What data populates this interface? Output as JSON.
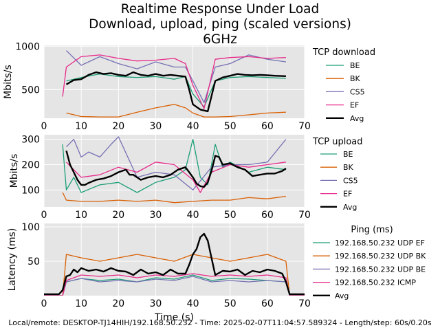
{
  "title_lines": [
    "Realtime Response Under Load",
    "Download, upload, ping (scaled versions)",
    "6GHz"
  ],
  "footer": "Local/remote: DESKTOP-TJ14HIH/192.168.50.232 - Time: 2025-02-07T11:04:57.589324 - Length/step: 60s/0.20s",
  "colors": {
    "BE": "#1b9e77",
    "BK": "#d95f02",
    "CS5": "#7570b3",
    "EF": "#e7298a",
    "Avg": "#000000",
    "panel_bg": "#e5e5e5",
    "grid": "#ffffff"
  },
  "chart_data": [
    {
      "type": "line",
      "title": "",
      "ylabel": "Mbits/s",
      "xlabel": "",
      "xlim": [
        0,
        70
      ],
      "ylim": [
        170,
        1010
      ],
      "xticks": [
        0,
        10,
        20,
        30,
        40,
        50,
        60,
        70
      ],
      "yticks": [
        500,
        1000
      ],
      "grid": true,
      "legend_title": "TCP download",
      "legend_placement": "right",
      "series": [
        {
          "name": "BE",
          "color_key": "BE",
          "x": [
            6,
            10,
            15,
            20,
            25,
            30,
            35,
            38,
            40,
            43,
            46,
            50,
            55,
            60,
            65
          ],
          "y": [
            600,
            640,
            680,
            650,
            640,
            650,
            620,
            650,
            450,
            300,
            600,
            640,
            650,
            640,
            630
          ]
        },
        {
          "name": "BK",
          "color_key": "BK",
          "x": [
            6,
            10,
            15,
            20,
            25,
            30,
            35,
            38,
            40,
            43,
            46,
            50,
            55,
            60,
            65
          ],
          "y": [
            230,
            190,
            185,
            185,
            240,
            290,
            330,
            290,
            230,
            185,
            185,
            190,
            210,
            230,
            240
          ]
        },
        {
          "name": "CS5",
          "color_key": "CS5",
          "x": [
            6,
            10,
            15,
            20,
            25,
            30,
            35,
            38,
            40,
            43,
            46,
            50,
            55,
            60,
            65
          ],
          "y": [
            950,
            780,
            880,
            800,
            740,
            820,
            760,
            760,
            600,
            350,
            760,
            800,
            900,
            850,
            820
          ]
        },
        {
          "name": "EF",
          "color_key": "EF",
          "x": [
            5,
            6,
            10,
            15,
            20,
            25,
            30,
            35,
            38,
            40,
            43,
            46,
            50,
            55,
            60,
            65
          ],
          "y": [
            420,
            760,
            880,
            900,
            860,
            830,
            840,
            860,
            800,
            550,
            280,
            850,
            870,
            880,
            860,
            870
          ]
        },
        {
          "name": "Avg",
          "color_key": "Avg",
          "x": [
            6,
            8,
            10,
            12,
            14,
            16,
            18,
            20,
            22,
            24,
            26,
            28,
            30,
            32,
            34,
            36,
            38,
            39,
            40,
            42,
            44,
            46,
            48,
            50,
            52,
            54,
            56,
            58,
            60,
            62,
            65
          ],
          "y": [
            560,
            610,
            620,
            670,
            700,
            680,
            690,
            670,
            660,
            700,
            670,
            660,
            680,
            660,
            670,
            660,
            650,
            500,
            330,
            270,
            250,
            600,
            640,
            660,
            680,
            670,
            665,
            670,
            665,
            660,
            655
          ]
        }
      ]
    },
    {
      "type": "line",
      "title": "",
      "ylabel": "Mbits/s",
      "xlabel": "",
      "xlim": [
        0,
        70
      ],
      "ylim": [
        33,
        318
      ],
      "xticks": [
        0,
        10,
        20,
        30,
        40,
        50,
        60,
        70
      ],
      "yticks": [
        100,
        200,
        300
      ],
      "grid": true,
      "legend_title": "TCP upload",
      "legend_placement": "right",
      "series": [
        {
          "name": "BE",
          "color_key": "BE",
          "x": [
            5,
            6,
            8,
            10,
            15,
            20,
            25,
            30,
            35,
            38,
            40,
            42,
            44,
            46,
            48,
            50,
            55,
            60,
            65
          ],
          "y": [
            280,
            100,
            150,
            90,
            120,
            130,
            90,
            130,
            150,
            180,
            300,
            150,
            120,
            280,
            190,
            210,
            170,
            190,
            180
          ]
        },
        {
          "name": "BK",
          "color_key": "BK",
          "x": [
            5,
            6,
            10,
            15,
            20,
            25,
            30,
            35,
            40,
            45,
            50,
            55,
            60,
            65
          ],
          "y": [
            90,
            60,
            55,
            55,
            60,
            55,
            60,
            50,
            55,
            60,
            60,
            70,
            65,
            75
          ]
        },
        {
          "name": "CS5",
          "color_key": "CS5",
          "x": [
            6,
            8,
            10,
            12,
            15,
            18,
            20,
            25,
            30,
            35,
            40,
            45,
            50,
            55,
            60,
            65
          ],
          "y": [
            270,
            300,
            230,
            250,
            230,
            280,
            310,
            150,
            170,
            160,
            100,
            190,
            200,
            200,
            210,
            300
          ]
        },
        {
          "name": "EF",
          "color_key": "EF",
          "x": [
            6,
            10,
            15,
            20,
            25,
            30,
            35,
            40,
            42,
            45,
            50,
            55,
            60,
            65
          ],
          "y": [
            210,
            150,
            160,
            190,
            170,
            210,
            200,
            140,
            90,
            170,
            200,
            190,
            200,
            210
          ]
        },
        {
          "name": "Avg",
          "color_key": "Avg",
          "x": [
            6,
            7,
            8,
            9,
            10,
            11,
            12,
            14,
            16,
            18,
            20,
            22,
            23,
            24,
            26,
            28,
            30,
            32,
            34,
            36,
            38,
            39,
            40,
            41,
            42,
            43,
            44,
            45,
            46,
            47,
            48,
            50,
            52,
            54,
            56,
            58,
            60,
            62,
            64,
            65
          ],
          "y": [
            255,
            200,
            170,
            140,
            120,
            120,
            128,
            140,
            145,
            155,
            170,
            180,
            160,
            160,
            140,
            150,
            155,
            150,
            160,
            180,
            190,
            170,
            150,
            125,
            115,
            112,
            130,
            175,
            235,
            230,
            200,
            205,
            190,
            180,
            155,
            160,
            165,
            165,
            175,
            185
          ]
        }
      ]
    },
    {
      "type": "line",
      "title": "",
      "ylabel": "Latency (ms)",
      "xlabel": "Time (s)",
      "xlim": [
        0,
        70
      ],
      "ylim": [
        0,
        105
      ],
      "xticks": [
        0,
        10,
        20,
        30,
        40,
        50,
        60,
        70
      ],
      "yticks": [
        50,
        100
      ],
      "grid": true,
      "legend_title": "Ping (ms)",
      "legend_placement": "right",
      "series": [
        {
          "name": "192.168.50.232 UDP EF",
          "color_key": "BE",
          "x": [
            0,
            5,
            6,
            10,
            15,
            20,
            25,
            30,
            35,
            40,
            45,
            50,
            55,
            60,
            65,
            66,
            70
          ],
          "y": [
            0,
            0,
            20,
            25,
            22,
            24,
            20,
            26,
            24,
            30,
            22,
            25,
            24,
            22,
            20,
            0,
            0
          ]
        },
        {
          "name": "192.168.50.232 UDP BK",
          "color_key": "BK",
          "x": [
            0,
            5,
            6,
            10,
            15,
            20,
            25,
            30,
            35,
            40,
            45,
            50,
            55,
            60,
            65,
            66,
            70
          ],
          "y": [
            0,
            0,
            60,
            55,
            50,
            55,
            60,
            55,
            50,
            60,
            55,
            50,
            55,
            60,
            50,
            0,
            0
          ]
        },
        {
          "name": "192.168.50.232 UDP BE",
          "color_key": "CS5",
          "x": [
            0,
            5,
            6,
            10,
            15,
            20,
            25,
            30,
            35,
            40,
            45,
            50,
            55,
            60,
            65,
            66,
            70
          ],
          "y": [
            0,
            0,
            20,
            25,
            20,
            22,
            20,
            24,
            22,
            28,
            20,
            22,
            20,
            22,
            20,
            0,
            0
          ]
        },
        {
          "name": "192.168.50.232 ICMP",
          "color_key": "EF",
          "x": [
            0,
            5,
            6,
            10,
            15,
            20,
            25,
            30,
            35,
            40,
            45,
            50,
            55,
            60,
            65,
            66,
            70
          ],
          "y": [
            0,
            0,
            22,
            30,
            28,
            30,
            26,
            30,
            28,
            32,
            28,
            30,
            28,
            30,
            26,
            0,
            0
          ]
        },
        {
          "name": "Avg",
          "color_key": "Avg",
          "x": [
            0,
            4,
            5,
            6,
            7,
            8,
            9,
            10,
            11,
            12,
            14,
            16,
            18,
            20,
            22,
            24,
            26,
            28,
            30,
            32,
            34,
            36,
            38,
            39,
            40,
            41,
            42,
            43,
            44,
            45,
            46,
            48,
            50,
            52,
            54,
            56,
            58,
            60,
            62,
            64,
            65,
            66,
            70
          ],
          "y": [
            2,
            2,
            8,
            28,
            30,
            38,
            34,
            40,
            38,
            36,
            38,
            35,
            40,
            36,
            35,
            30,
            38,
            32,
            34,
            30,
            38,
            32,
            32,
            45,
            60,
            68,
            85,
            90,
            80,
            55,
            30,
            36,
            35,
            38,
            30,
            36,
            34,
            38,
            36,
            32,
            20,
            2,
            2
          ]
        }
      ]
    }
  ]
}
